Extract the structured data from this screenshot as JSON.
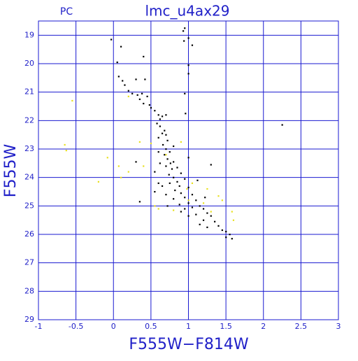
{
  "chart_data": {
    "type": "scatter",
    "title": "lmc_u4ax29",
    "subtitle": "PC",
    "x_label": "F555W−F814W",
    "y_label": "F555W",
    "xlim": [
      -1,
      3
    ],
    "ylim": [
      29,
      18.5
    ],
    "xticks": [
      -1,
      -0.5,
      0,
      0.5,
      1,
      1.5,
      2,
      2.5,
      3
    ],
    "yticks": [
      19,
      20,
      21,
      22,
      23,
      24,
      25,
      26,
      27,
      28,
      29
    ],
    "grid": true,
    "grid_color": "#1a1ad0",
    "series": [
      {
        "color": "#000000",
        "x": [
          -0.03,
          0.1,
          0.05,
          0.4,
          0.93,
          0.95,
          0.94,
          1.0,
          1.05,
          1.0,
          1.0,
          0.07,
          0.12,
          0.15,
          0.3,
          0.42,
          0.2,
          0.25,
          0.32,
          0.38,
          0.45,
          0.95,
          0.35,
          0.4,
          0.48,
          0.5,
          0.55,
          0.6,
          0.65,
          0.7,
          0.62,
          0.96,
          0.58,
          0.62,
          0.68,
          0.7,
          0.65,
          0.6,
          0.72,
          0.8,
          0.66,
          0.7,
          0.75,
          0.68,
          0.72,
          0.76,
          0.8,
          0.7,
          0.78,
          0.85,
          0.9,
          0.74,
          0.8,
          0.95,
          0.85,
          0.75,
          0.88,
          1.0,
          0.82,
          0.9,
          1.05,
          0.95,
          0.8,
          1.1,
          1.0,
          0.88,
          1.15,
          1.05,
          1.2,
          0.95,
          1.25,
          1.1,
          1.3,
          1.0,
          1.2,
          1.35,
          1.15,
          1.4,
          1.25,
          1.45,
          1.5,
          1.55,
          1.5,
          1.58,
          0.3,
          0.6,
          1.3,
          0.35,
          2.25,
          0.55,
          0.6,
          0.65,
          0.7,
          1.22,
          0.9,
          0.55,
          0.62,
          1.0,
          1.12,
          0.72
        ],
        "values": [
          19.15,
          19.4,
          19.95,
          19.75,
          18.85,
          18.75,
          19.2,
          19.1,
          19.35,
          20.05,
          20.35,
          20.45,
          20.6,
          20.75,
          20.55,
          20.55,
          20.95,
          21.05,
          21.1,
          21.05,
          21.15,
          21.05,
          21.25,
          21.4,
          21.45,
          21.55,
          21.65,
          21.8,
          21.85,
          21.8,
          21.95,
          21.75,
          22.1,
          22.2,
          22.35,
          22.5,
          22.45,
          22.6,
          22.7,
          22.9,
          22.85,
          23.0,
          23.1,
          23.2,
          23.35,
          23.5,
          23.45,
          23.6,
          23.7,
          23.65,
          23.85,
          23.9,
          24.0,
          24.05,
          24.15,
          24.2,
          24.3,
          24.35,
          24.45,
          24.55,
          24.6,
          24.7,
          24.75,
          24.8,
          24.9,
          24.95,
          25.0,
          25.05,
          25.1,
          25.1,
          25.25,
          25.3,
          25.35,
          25.35,
          25.5,
          25.55,
          25.65,
          25.7,
          25.75,
          25.85,
          25.9,
          26.0,
          26.1,
          26.15,
          23.45,
          23.1,
          23.55,
          24.85,
          22.15,
          24.5,
          24.2,
          24.3,
          24.6,
          24.7,
          25.2,
          23.8,
          23.5,
          23.3,
          24.1,
          25.0
        ]
      },
      {
        "color": "#e8e020",
        "x": [
          -0.65,
          -0.63,
          -0.55,
          -0.2,
          -0.08,
          0.07,
          0.1,
          0.2,
          0.35,
          0.4,
          0.5,
          0.7,
          0.9,
          0.98,
          1.25,
          1.2,
          1.4,
          1.45,
          1.6,
          1.58,
          1.3,
          0.8,
          0.55,
          1.05,
          0.6,
          0.2,
          1.0
        ],
        "values": [
          22.85,
          23.05,
          21.3,
          24.15,
          23.3,
          23.6,
          24.0,
          23.8,
          22.75,
          23.6,
          22.8,
          23.2,
          22.75,
          24.4,
          24.4,
          24.9,
          24.65,
          24.8,
          25.5,
          25.2,
          25.2,
          25.15,
          25.0,
          24.2,
          25.1,
          21.15,
          24.8
        ]
      }
    ]
  }
}
